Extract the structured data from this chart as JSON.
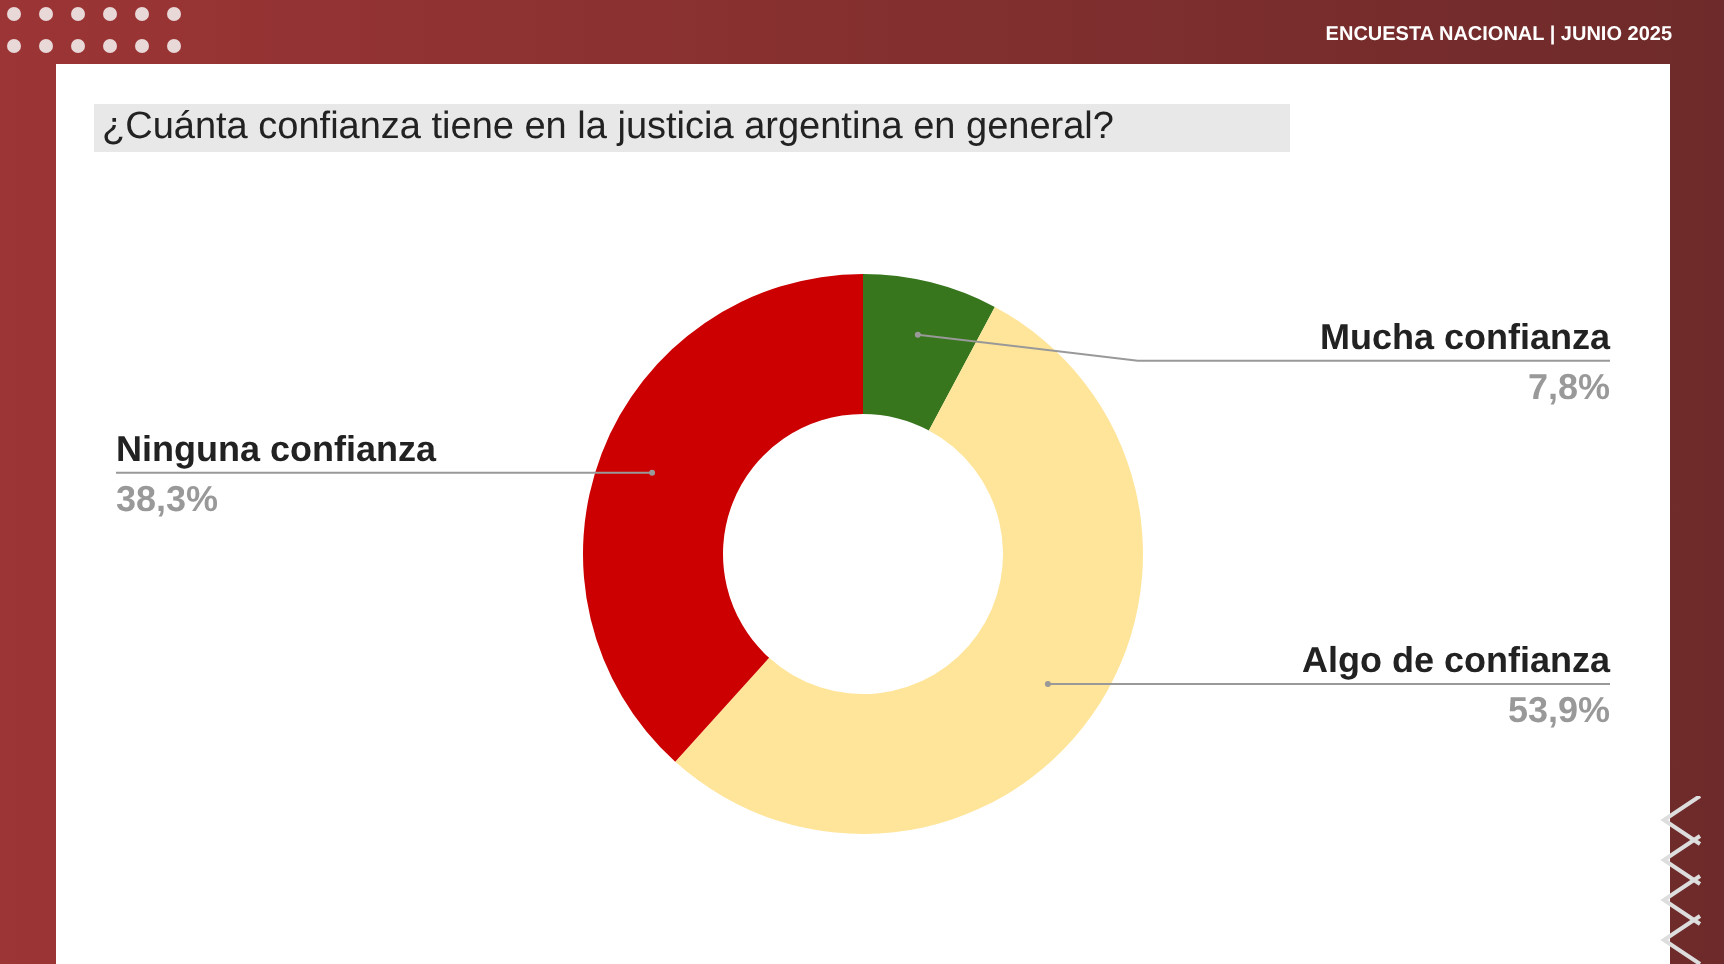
{
  "chart_data": {
    "type": "donut",
    "title": "¿Cuánta confianza tiene en la justicia argentina en general?",
    "annotations": [
      "ENCUESTA NACIONAL | JUNIO 2025"
    ],
    "categories": [
      "Mucha confianza",
      "Algo de confianza",
      "Ninguna confianza"
    ],
    "values": [
      7.8,
      53.9,
      38.3
    ],
    "value_labels": [
      "7,8%",
      "53,9%",
      "38,3%"
    ],
    "colors": [
      "#38761d",
      "#ffe599",
      "#cc0000"
    ]
  }
}
